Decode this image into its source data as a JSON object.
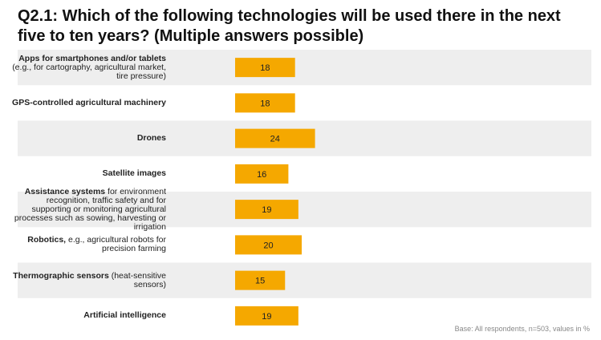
{
  "title": "Q2.1: Which of the following technologies will be used there in the next five to ten years? (Multiple answers possible)",
  "footnote": "Base: All respondents, n=503, values in %",
  "colors": {
    "bar": "#f5a800",
    "stripe": "#eeeeee",
    "text": "#222222"
  },
  "chart_data": {
    "type": "bar",
    "orientation": "horizontal",
    "categories": [
      {
        "bold": "Apps for smartphones and/or tablets",
        "normal": "(e.g., for cartography, agricultural market, tire pressure)"
      },
      {
        "bold": "GPS-controlled agricultural machinery",
        "normal": ""
      },
      {
        "bold": "Drones",
        "normal": ""
      },
      {
        "bold": "Satellite images",
        "normal": ""
      },
      {
        "bold": "Assistance systems",
        "normal": "for environment recognition, traffic safety and for supporting or monitoring agricultural processes such as sowing, harvesting or irrigation"
      },
      {
        "bold": "Robotics,",
        "normal": "e.g., agricultural robots for precision farming"
      },
      {
        "bold": "Thermographic sensors",
        "normal": "(heat-sensitive sensors)"
      },
      {
        "bold": "Artificial intelligence",
        "normal": ""
      }
    ],
    "values": [
      18,
      18,
      24,
      16,
      19,
      20,
      15,
      19
    ],
    "unit": "%",
    "data_labels": true
  }
}
